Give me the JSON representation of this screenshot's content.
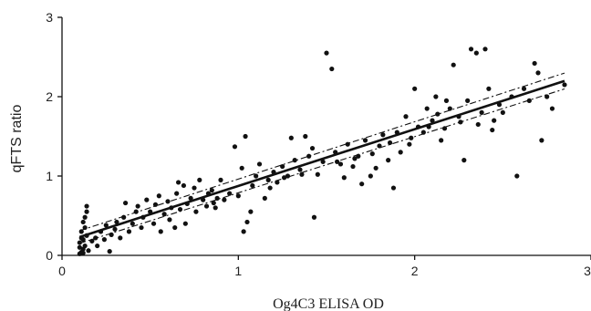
{
  "chart_data": {
    "type": "scatter",
    "title": "",
    "xlabel": "Og4C3 ELISA OD",
    "ylabel": "qFTS ratio",
    "xlim": [
      0,
      3
    ],
    "ylim": [
      0,
      3
    ],
    "x_ticks": [
      0,
      1,
      2,
      3
    ],
    "y_ticks": [
      0,
      1,
      2,
      3
    ],
    "x_tick_labels": [
      "0",
      "1",
      "2",
      "3"
    ],
    "y_tick_labels": [
      "0",
      "1",
      "2",
      "3"
    ],
    "grid": false,
    "legend": "none",
    "regression": {
      "intercept": 0.16,
      "slope": 0.715,
      "x_range": [
        0.1,
        2.85
      ]
    },
    "confidence_band": {
      "upper_offset_at_start": 0.08,
      "upper_offset_at_end": 0.1,
      "lower_offset_at_start": -0.08,
      "lower_offset_at_end": -0.1
    },
    "points": [
      [
        0.1,
        0.02
      ],
      [
        0.11,
        0.04
      ],
      [
        0.12,
        0.08
      ],
      [
        0.13,
        0.12
      ],
      [
        0.1,
        0.16
      ],
      [
        0.12,
        0.2
      ],
      [
        0.14,
        0.25
      ],
      [
        0.11,
        0.3
      ],
      [
        0.13,
        0.35
      ],
      [
        0.12,
        0.42
      ],
      [
        0.13,
        0.48
      ],
      [
        0.14,
        0.55
      ],
      [
        0.14,
        0.62
      ],
      [
        0.1,
        0.1
      ],
      [
        0.12,
        0.03
      ],
      [
        0.15,
        0.06
      ],
      [
        0.11,
        0.22
      ],
      [
        0.17,
        0.18
      ],
      [
        0.19,
        0.22
      ],
      [
        0.2,
        0.12
      ],
      [
        0.22,
        0.3
      ],
      [
        0.24,
        0.2
      ],
      [
        0.25,
        0.38
      ],
      [
        0.27,
        0.05
      ],
      [
        0.28,
        0.26
      ],
      [
        0.3,
        0.33
      ],
      [
        0.31,
        0.42
      ],
      [
        0.33,
        0.22
      ],
      [
        0.35,
        0.48
      ],
      [
        0.36,
        0.66
      ],
      [
        0.38,
        0.3
      ],
      [
        0.4,
        0.4
      ],
      [
        0.42,
        0.55
      ],
      [
        0.43,
        0.62
      ],
      [
        0.45,
        0.35
      ],
      [
        0.46,
        0.48
      ],
      [
        0.48,
        0.7
      ],
      [
        0.5,
        0.55
      ],
      [
        0.52,
        0.4
      ],
      [
        0.53,
        0.64
      ],
      [
        0.55,
        0.75
      ],
      [
        0.56,
        0.3
      ],
      [
        0.58,
        0.52
      ],
      [
        0.6,
        0.68
      ],
      [
        0.61,
        0.45
      ],
      [
        0.62,
        0.6
      ],
      [
        0.64,
        0.35
      ],
      [
        0.65,
        0.78
      ],
      [
        0.66,
        0.92
      ],
      [
        0.67,
        0.58
      ],
      [
        0.69,
        0.88
      ],
      [
        0.7,
        0.4
      ],
      [
        0.71,
        0.65
      ],
      [
        0.73,
        0.72
      ],
      [
        0.75,
        0.85
      ],
      [
        0.76,
        0.55
      ],
      [
        0.78,
        0.95
      ],
      [
        0.8,
        0.7
      ],
      [
        0.82,
        0.62
      ],
      [
        0.83,
        0.78
      ],
      [
        0.85,
        0.82
      ],
      [
        0.87,
        0.6
      ],
      [
        0.88,
        0.72
      ],
      [
        0.9,
        0.95
      ],
      [
        0.98,
        1.37
      ],
      [
        1.02,
        1.1
      ],
      [
        1.04,
        1.5
      ],
      [
        1.0,
        0.75
      ],
      [
        1.03,
        0.3
      ],
      [
        1.05,
        0.42
      ],
      [
        1.07,
        0.55
      ],
      [
        1.08,
        0.88
      ],
      [
        1.1,
        1.0
      ],
      [
        1.12,
        1.15
      ],
      [
        1.15,
        0.72
      ],
      [
        1.17,
        0.95
      ],
      [
        1.2,
        1.05
      ],
      [
        1.22,
        0.92
      ],
      [
        1.25,
        1.12
      ],
      [
        1.28,
        1.0
      ],
      [
        1.3,
        1.48
      ],
      [
        1.32,
        1.2
      ],
      [
        1.35,
        1.08
      ],
      [
        1.38,
        1.5
      ],
      [
        1.4,
        1.25
      ],
      [
        1.42,
        1.35
      ],
      [
        1.43,
        0.48
      ],
      [
        1.45,
        1.02
      ],
      [
        1.48,
        1.18
      ],
      [
        1.5,
        2.55
      ],
      [
        1.53,
        2.35
      ],
      [
        1.55,
        1.3
      ],
      [
        1.58,
        1.15
      ],
      [
        1.6,
        0.98
      ],
      [
        1.62,
        1.4
      ],
      [
        1.65,
        1.12
      ],
      [
        1.68,
        1.25
      ],
      [
        1.7,
        0.9
      ],
      [
        1.72,
        1.45
      ],
      [
        1.75,
        1.0
      ],
      [
        1.78,
        1.1
      ],
      [
        1.8,
        1.38
      ],
      [
        1.82,
        1.52
      ],
      [
        1.85,
        1.2
      ],
      [
        1.88,
        0.85
      ],
      [
        1.9,
        1.55
      ],
      [
        1.92,
        1.3
      ],
      [
        1.95,
        1.75
      ],
      [
        1.97,
        1.4
      ],
      [
        2.0,
        2.1
      ],
      [
        2.02,
        1.62
      ],
      [
        2.05,
        1.55
      ],
      [
        2.07,
        1.85
      ],
      [
        2.1,
        1.7
      ],
      [
        2.12,
        2.0
      ],
      [
        2.15,
        1.45
      ],
      [
        2.17,
        1.6
      ],
      [
        2.2,
        1.85
      ],
      [
        2.22,
        2.4
      ],
      [
        2.25,
        1.75
      ],
      [
        2.28,
        1.2
      ],
      [
        2.3,
        1.95
      ],
      [
        2.32,
        2.6
      ],
      [
        2.35,
        2.55
      ],
      [
        2.36,
        1.65
      ],
      [
        2.38,
        1.8
      ],
      [
        2.4,
        2.6
      ],
      [
        2.42,
        2.1
      ],
      [
        2.45,
        1.7
      ],
      [
        2.48,
        1.9
      ],
      [
        2.5,
        1.8
      ],
      [
        2.55,
        2.0
      ],
      [
        2.58,
        1.0
      ],
      [
        2.62,
        2.1
      ],
      [
        2.65,
        1.95
      ],
      [
        2.68,
        2.42
      ],
      [
        2.7,
        2.3
      ],
      [
        2.72,
        1.45
      ],
      [
        2.75,
        2.0
      ],
      [
        2.78,
        1.85
      ],
      [
        2.85,
        2.15
      ],
      [
        2.18,
        1.95
      ],
      [
        2.08,
        1.62
      ],
      [
        1.98,
        1.48
      ],
      [
        2.13,
        1.78
      ],
      [
        2.26,
        1.68
      ],
      [
        2.44,
        1.58
      ],
      [
        1.86,
        1.42
      ],
      [
        1.76,
        1.28
      ],
      [
        1.66,
        1.22
      ],
      [
        1.56,
        1.18
      ],
      [
        1.36,
        1.02
      ],
      [
        1.26,
        0.98
      ],
      [
        1.18,
        0.85
      ],
      [
        0.95,
        0.78
      ],
      [
        0.92,
        0.7
      ],
      [
        0.86,
        0.66
      ]
    ]
  }
}
